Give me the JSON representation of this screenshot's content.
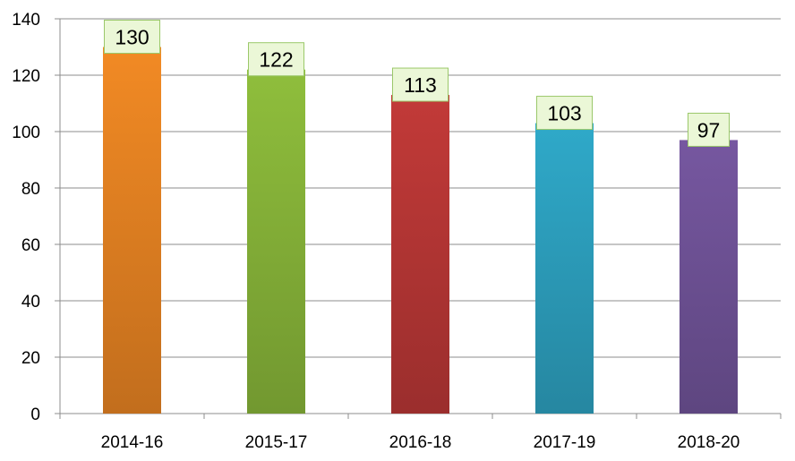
{
  "chart_data": {
    "type": "bar",
    "title": "",
    "xlabel": "",
    "ylabel": "",
    "categories": [
      "2014-16",
      "2015-17",
      "2016-18",
      "2017-19",
      "2018-20"
    ],
    "values": [
      130,
      122,
      113,
      103,
      97
    ],
    "data_labels": [
      "130",
      "122",
      "113",
      "103",
      "97"
    ],
    "y_ticks": [
      "0",
      "20",
      "40",
      "60",
      "80",
      "100",
      "120",
      "140"
    ],
    "ylim": [
      0,
      140
    ],
    "grid": true,
    "legend": "none",
    "colors": [
      "#f28a24",
      "#8fbe3c",
      "#c23a38",
      "#2fa9c9",
      "#7657a0"
    ],
    "label_box_color": "#ebf7d7",
    "label_border_color": "#9bc86a"
  }
}
